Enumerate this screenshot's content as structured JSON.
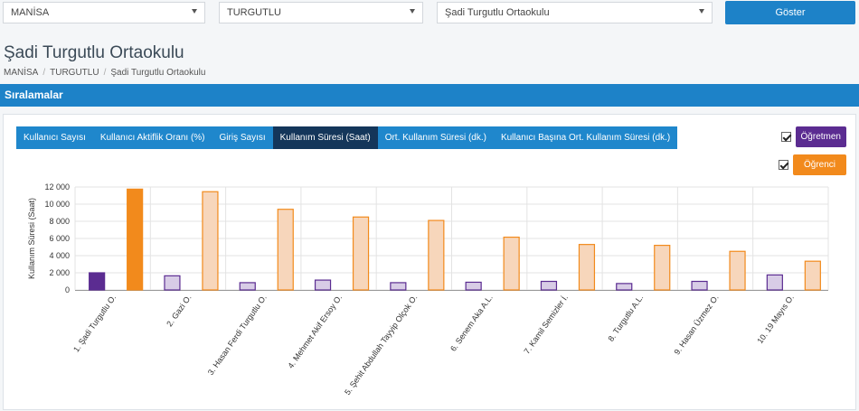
{
  "filters": {
    "province": "MANİSA",
    "district": "TURGUTLU",
    "school": "Şadi Turgutlu Ortaokulu",
    "submit_label": "Göster"
  },
  "page": {
    "title": "Şadi Turgutlu Ortaokulu",
    "breadcrumb": [
      "MANİSA",
      "TURGUTLU",
      "Şadi Turgutlu Ortaokulu"
    ]
  },
  "section": {
    "title": "Sıralamalar"
  },
  "tabs": [
    {
      "label": "Kullanıcı Sayısı",
      "active": false
    },
    {
      "label": "Kullanıcı Aktiflik Oranı (%)",
      "active": false
    },
    {
      "label": "Giriş Sayısı",
      "active": false
    },
    {
      "label": "Kullanım Süresi (Saat)",
      "active": true
    },
    {
      "label": "Ort. Kullanım Süresi (dk.)",
      "active": false
    },
    {
      "label": "Kullanıcı Başına Ort. Kullanım Süresi (dk.)",
      "active": false
    }
  ],
  "legend": {
    "teacher": {
      "label": "Öğretmen",
      "checked": true,
      "color": "#5b2c91"
    },
    "student": {
      "label": "Öğrenci",
      "checked": true,
      "color": "#f28a1c"
    }
  },
  "chart_data": {
    "type": "bar",
    "ylabel": "Kullanım Süresi (Saat)",
    "ylim": [
      0,
      12000
    ],
    "yticks": [
      "0",
      "2 000",
      "4 000",
      "6 000",
      "8 000",
      "10 000",
      "12 000"
    ],
    "grid": true,
    "categories": [
      "1. Şadi Turgutlu O.",
      "2. Gazi O.",
      "3. Hasan Ferdi Turgutlu O.",
      "4. Mehmet Akif Ersoy O.",
      "5. Şehit Abdullah Tayyip Olçok O.",
      "6. Senem Aka A.L.",
      "7. Kamil Semizler İ.",
      "8. Turgutlu A.L.",
      "9. Hasan Üzmez O.",
      "10. 19 Mayıs O."
    ],
    "series": [
      {
        "name": "Öğretmen",
        "values": [
          2000,
          1650,
          850,
          1150,
          850,
          900,
          1000,
          750,
          1000,
          1750
        ]
      },
      {
        "name": "Öğrenci",
        "values": [
          11750,
          11450,
          9400,
          8500,
          8100,
          6150,
          5300,
          5200,
          4500,
          3350
        ]
      }
    ],
    "highlight_index": 0
  }
}
